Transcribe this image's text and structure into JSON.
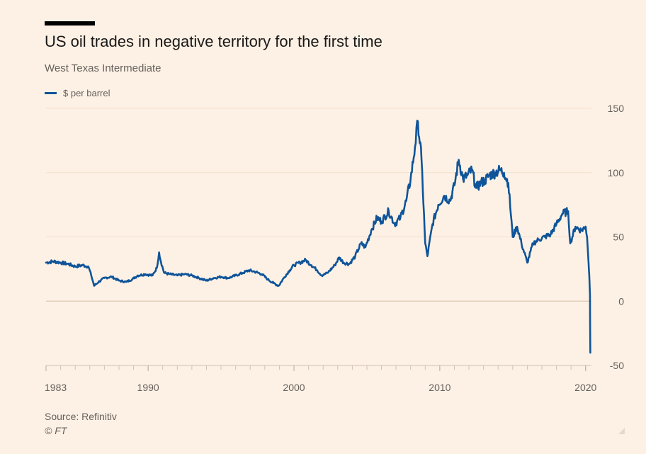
{
  "header": {
    "title": "US oil trades in negative territory for the first time",
    "subtitle": "West Texas Intermediate"
  },
  "footer": {
    "source": "Source: Refinitiv",
    "copyright": "© FT"
  },
  "colors": {
    "background": "#fdf1e5",
    "series": "#0f5499",
    "grid": "#f2dfce",
    "axis_text": "#66605c"
  },
  "chart_data": {
    "type": "line",
    "title": "US oil trades in negative territory for the first time",
    "subtitle": "West Texas Intermediate",
    "xlabel": "",
    "ylabel": "$ per barrel",
    "x_range": [
      1983,
      2020.4
    ],
    "ylim": [
      -50,
      150
    ],
    "y_ticks": [
      150,
      100,
      50,
      0,
      -50
    ],
    "x_tick_labels": [
      "1983",
      "1990",
      "2000",
      "2010",
      "2020"
    ],
    "y_axis_side": "right",
    "grid": true,
    "legend": "top-left",
    "series": [
      {
        "name": "$ per barrel",
        "x": [
          1983.0,
          1983.5,
          1984.0,
          1984.5,
          1985.0,
          1985.5,
          1985.9,
          1986.1,
          1986.3,
          1986.6,
          1987.0,
          1987.5,
          1988.0,
          1988.5,
          1988.9,
          1989.3,
          1989.8,
          1990.3,
          1990.6,
          1990.75,
          1990.85,
          1991.1,
          1991.5,
          1992.0,
          1992.5,
          1993.0,
          1993.5,
          1994.0,
          1994.5,
          1995.0,
          1995.5,
          1996.0,
          1996.5,
          1996.9,
          1997.3,
          1997.8,
          1998.2,
          1998.6,
          1998.95,
          1999.3,
          1999.7,
          2000.0,
          2000.4,
          2000.8,
          2001.2,
          2001.6,
          2001.9,
          2002.3,
          2002.8,
          2003.1,
          2003.4,
          2003.8,
          2004.2,
          2004.6,
          2004.9,
          2005.3,
          2005.7,
          2006.0,
          2006.5,
          2006.9,
          2007.3,
          2007.7,
          2008.0,
          2008.3,
          2008.5,
          2008.75,
          2009.0,
          2009.15,
          2009.5,
          2009.9,
          2010.3,
          2010.7,
          2011.0,
          2011.3,
          2011.6,
          2011.9,
          2012.2,
          2012.5,
          2012.8,
          2013.1,
          2013.4,
          2013.8,
          2014.1,
          2014.4,
          2014.7,
          2015.0,
          2015.3,
          2015.6,
          2016.0,
          2016.4,
          2016.8,
          2017.2,
          2017.6,
          2018.0,
          2018.4,
          2018.8,
          2018.95,
          2019.3,
          2019.7,
          2020.0,
          2020.1,
          2020.2,
          2020.25,
          2020.3,
          2020.32
        ],
        "values": [
          30,
          31,
          30,
          29,
          27,
          28,
          27,
          20,
          12,
          15,
          18,
          19,
          16,
          15,
          17,
          20,
          21,
          20,
          26,
          38,
          32,
          22,
          21,
          20,
          21,
          20,
          18,
          16,
          18,
          19,
          18,
          20,
          22,
          24,
          23,
          21,
          17,
          14,
          12,
          18,
          24,
          28,
          30,
          32,
          28,
          24,
          20,
          22,
          28,
          34,
          30,
          29,
          35,
          45,
          42,
          55,
          65,
          62,
          70,
          60,
          65,
          78,
          95,
          120,
          140,
          110,
          45,
          35,
          60,
          75,
          82,
          78,
          90,
          110,
          95,
          98,
          102,
          88,
          92,
          94,
          98,
          100,
          102,
          100,
          92,
          50,
          58,
          45,
          30,
          45,
          48,
          50,
          52,
          60,
          68,
          70,
          45,
          58,
          55,
          58,
          50,
          30,
          20,
          5,
          -40
        ]
      }
    ]
  }
}
